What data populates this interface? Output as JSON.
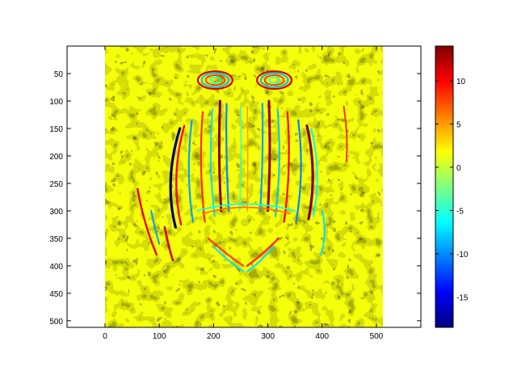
{
  "chart_data": {
    "type": "heatmap",
    "title": "",
    "xlabel": "",
    "ylabel": "",
    "image_extent": {
      "x": [
        0,
        512
      ],
      "y": [
        0,
        512
      ]
    },
    "xlim": [
      -70,
      582
    ],
    "ylim": [
      512,
      0
    ],
    "y_reversed": true,
    "x_ticks": [
      0,
      100,
      200,
      300,
      400,
      500
    ],
    "x_tick_labels": [
      "0",
      "100",
      "200",
      "300",
      "400",
      "500"
    ],
    "y_ticks": [
      50,
      100,
      150,
      200,
      250,
      300,
      350,
      400,
      450,
      500
    ],
    "y_tick_labels": [
      "50",
      "100",
      "150",
      "200",
      "250",
      "300",
      "350",
      "400",
      "450",
      "500"
    ],
    "colormap": "jet",
    "colorbar": {
      "range": [
        -18.5,
        14
      ],
      "ticks": [
        10,
        5,
        0,
        -5,
        -10,
        -15
      ],
      "tick_labels": [
        "10",
        "5",
        "0",
        "-5",
        "-10",
        "-15"
      ]
    },
    "description_values": {
      "background_level": 1.5,
      "edge_max": 14,
      "edge_min": -18.5
    },
    "structures": [
      {
        "name": "left-eye",
        "center": [
          203,
          62
        ],
        "rx": 32,
        "ry": 16
      },
      {
        "name": "right-eye",
        "center": [
          312,
          62
        ],
        "rx": 32,
        "ry": 16
      },
      {
        "name": "left-cheek-outer",
        "center": [
          130,
          245
        ],
        "rx": 14,
        "ry": 80
      },
      {
        "name": "right-cheek-outer",
        "center": [
          377,
          210
        ],
        "rx": 12,
        "ry": 75
      },
      {
        "name": "left-nose-ridge",
        "center": [
          213,
          210
        ],
        "rx": 8,
        "ry": 90
      },
      {
        "name": "right-nose-ridge",
        "center": [
          302,
          210
        ],
        "rx": 8,
        "ry": 90
      },
      {
        "name": "mouth",
        "center": [
          258,
          380
        ],
        "rx": 70,
        "ry": 40
      }
    ]
  }
}
